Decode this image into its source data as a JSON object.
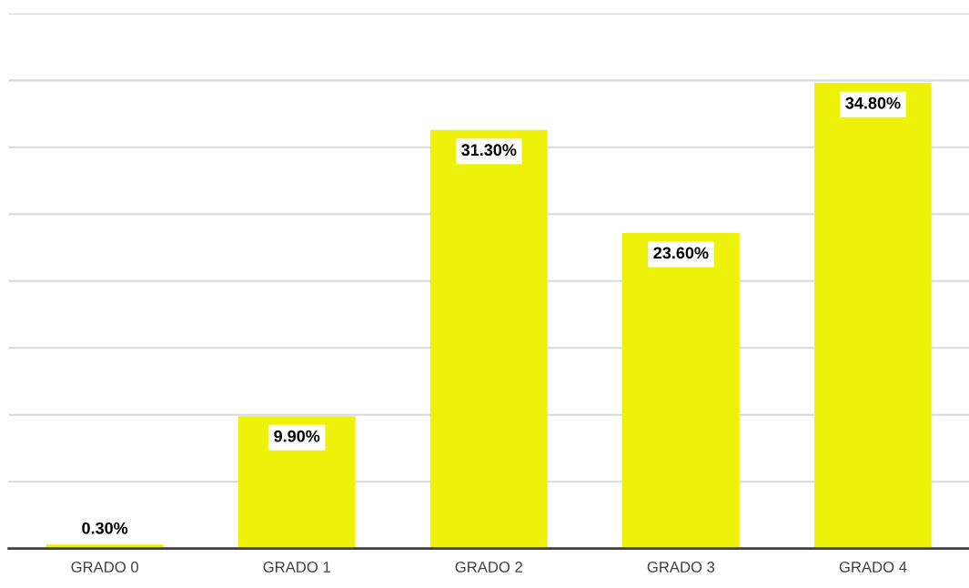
{
  "chart_data": {
    "type": "bar",
    "categories": [
      "GRADO 0",
      "GRADO 1",
      "GRADO 2",
      "GRADO 3",
      "GRADO 4"
    ],
    "values": [
      0.3,
      9.9,
      31.3,
      23.6,
      34.8
    ],
    "value_labels": [
      "0.30%",
      "9.90%",
      "31.30%",
      "23.60%",
      "34.80%"
    ],
    "color": "#eef20a",
    "ylim": [
      0,
      40
    ],
    "yticks": [
      {
        "value": 0,
        "label": null
      },
      {
        "value": 5,
        "label": null
      },
      {
        "value": 10,
        "label": null
      },
      {
        "value": 15,
        "label": null
      },
      {
        "value": 20,
        "label": null
      },
      {
        "value": 25,
        "label": null
      },
      {
        "value": 30,
        "label": null
      },
      {
        "value": 35,
        "label": null
      },
      {
        "value": 40,
        "label": null
      }
    ],
    "tick_labels": "x",
    "grid": "y"
  }
}
